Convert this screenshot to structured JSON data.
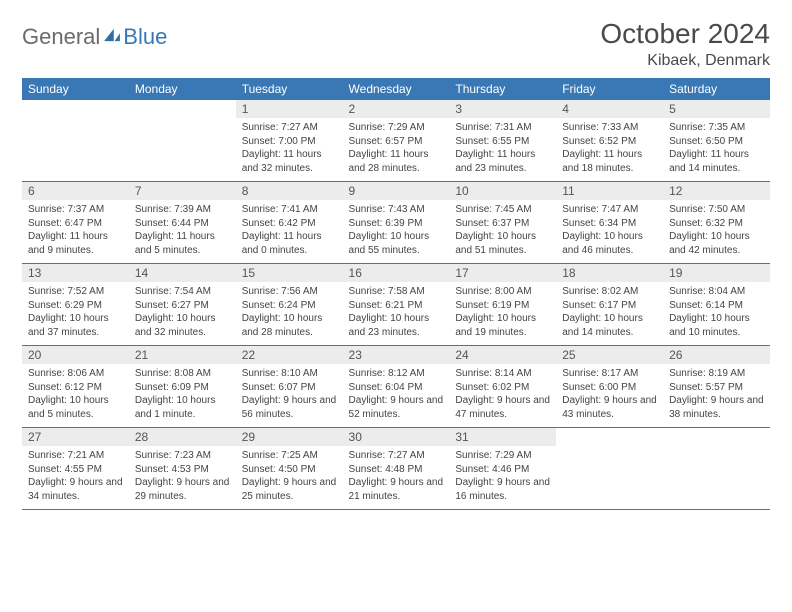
{
  "brand": {
    "part1": "General",
    "part2": "Blue"
  },
  "title": "October 2024",
  "location": "Kibaek, Denmark",
  "colors": {
    "header_bg": "#3a78b5",
    "header_text": "#ffffff",
    "daynum_bg": "#ececec",
    "rule": "#3a78b5",
    "logo_gray": "#6b6b6b",
    "logo_blue": "#3a78b5"
  },
  "weekdays": [
    "Sunday",
    "Monday",
    "Tuesday",
    "Wednesday",
    "Thursday",
    "Friday",
    "Saturday"
  ],
  "weeks": [
    [
      null,
      null,
      {
        "n": "1",
        "sr": "Sunrise: 7:27 AM",
        "ss": "Sunset: 7:00 PM",
        "dl": "Daylight: 11 hours and 32 minutes."
      },
      {
        "n": "2",
        "sr": "Sunrise: 7:29 AM",
        "ss": "Sunset: 6:57 PM",
        "dl": "Daylight: 11 hours and 28 minutes."
      },
      {
        "n": "3",
        "sr": "Sunrise: 7:31 AM",
        "ss": "Sunset: 6:55 PM",
        "dl": "Daylight: 11 hours and 23 minutes."
      },
      {
        "n": "4",
        "sr": "Sunrise: 7:33 AM",
        "ss": "Sunset: 6:52 PM",
        "dl": "Daylight: 11 hours and 18 minutes."
      },
      {
        "n": "5",
        "sr": "Sunrise: 7:35 AM",
        "ss": "Sunset: 6:50 PM",
        "dl": "Daylight: 11 hours and 14 minutes."
      }
    ],
    [
      {
        "n": "6",
        "sr": "Sunrise: 7:37 AM",
        "ss": "Sunset: 6:47 PM",
        "dl": "Daylight: 11 hours and 9 minutes."
      },
      {
        "n": "7",
        "sr": "Sunrise: 7:39 AM",
        "ss": "Sunset: 6:44 PM",
        "dl": "Daylight: 11 hours and 5 minutes."
      },
      {
        "n": "8",
        "sr": "Sunrise: 7:41 AM",
        "ss": "Sunset: 6:42 PM",
        "dl": "Daylight: 11 hours and 0 minutes."
      },
      {
        "n": "9",
        "sr": "Sunrise: 7:43 AM",
        "ss": "Sunset: 6:39 PM",
        "dl": "Daylight: 10 hours and 55 minutes."
      },
      {
        "n": "10",
        "sr": "Sunrise: 7:45 AM",
        "ss": "Sunset: 6:37 PM",
        "dl": "Daylight: 10 hours and 51 minutes."
      },
      {
        "n": "11",
        "sr": "Sunrise: 7:47 AM",
        "ss": "Sunset: 6:34 PM",
        "dl": "Daylight: 10 hours and 46 minutes."
      },
      {
        "n": "12",
        "sr": "Sunrise: 7:50 AM",
        "ss": "Sunset: 6:32 PM",
        "dl": "Daylight: 10 hours and 42 minutes."
      }
    ],
    [
      {
        "n": "13",
        "sr": "Sunrise: 7:52 AM",
        "ss": "Sunset: 6:29 PM",
        "dl": "Daylight: 10 hours and 37 minutes."
      },
      {
        "n": "14",
        "sr": "Sunrise: 7:54 AM",
        "ss": "Sunset: 6:27 PM",
        "dl": "Daylight: 10 hours and 32 minutes."
      },
      {
        "n": "15",
        "sr": "Sunrise: 7:56 AM",
        "ss": "Sunset: 6:24 PM",
        "dl": "Daylight: 10 hours and 28 minutes."
      },
      {
        "n": "16",
        "sr": "Sunrise: 7:58 AM",
        "ss": "Sunset: 6:21 PM",
        "dl": "Daylight: 10 hours and 23 minutes."
      },
      {
        "n": "17",
        "sr": "Sunrise: 8:00 AM",
        "ss": "Sunset: 6:19 PM",
        "dl": "Daylight: 10 hours and 19 minutes."
      },
      {
        "n": "18",
        "sr": "Sunrise: 8:02 AM",
        "ss": "Sunset: 6:17 PM",
        "dl": "Daylight: 10 hours and 14 minutes."
      },
      {
        "n": "19",
        "sr": "Sunrise: 8:04 AM",
        "ss": "Sunset: 6:14 PM",
        "dl": "Daylight: 10 hours and 10 minutes."
      }
    ],
    [
      {
        "n": "20",
        "sr": "Sunrise: 8:06 AM",
        "ss": "Sunset: 6:12 PM",
        "dl": "Daylight: 10 hours and 5 minutes."
      },
      {
        "n": "21",
        "sr": "Sunrise: 8:08 AM",
        "ss": "Sunset: 6:09 PM",
        "dl": "Daylight: 10 hours and 1 minute."
      },
      {
        "n": "22",
        "sr": "Sunrise: 8:10 AM",
        "ss": "Sunset: 6:07 PM",
        "dl": "Daylight: 9 hours and 56 minutes."
      },
      {
        "n": "23",
        "sr": "Sunrise: 8:12 AM",
        "ss": "Sunset: 6:04 PM",
        "dl": "Daylight: 9 hours and 52 minutes."
      },
      {
        "n": "24",
        "sr": "Sunrise: 8:14 AM",
        "ss": "Sunset: 6:02 PM",
        "dl": "Daylight: 9 hours and 47 minutes."
      },
      {
        "n": "25",
        "sr": "Sunrise: 8:17 AM",
        "ss": "Sunset: 6:00 PM",
        "dl": "Daylight: 9 hours and 43 minutes."
      },
      {
        "n": "26",
        "sr": "Sunrise: 8:19 AM",
        "ss": "Sunset: 5:57 PM",
        "dl": "Daylight: 9 hours and 38 minutes."
      }
    ],
    [
      {
        "n": "27",
        "sr": "Sunrise: 7:21 AM",
        "ss": "Sunset: 4:55 PM",
        "dl": "Daylight: 9 hours and 34 minutes."
      },
      {
        "n": "28",
        "sr": "Sunrise: 7:23 AM",
        "ss": "Sunset: 4:53 PM",
        "dl": "Daylight: 9 hours and 29 minutes."
      },
      {
        "n": "29",
        "sr": "Sunrise: 7:25 AM",
        "ss": "Sunset: 4:50 PM",
        "dl": "Daylight: 9 hours and 25 minutes."
      },
      {
        "n": "30",
        "sr": "Sunrise: 7:27 AM",
        "ss": "Sunset: 4:48 PM",
        "dl": "Daylight: 9 hours and 21 minutes."
      },
      {
        "n": "31",
        "sr": "Sunrise: 7:29 AM",
        "ss": "Sunset: 4:46 PM",
        "dl": "Daylight: 9 hours and 16 minutes."
      },
      null,
      null
    ]
  ]
}
